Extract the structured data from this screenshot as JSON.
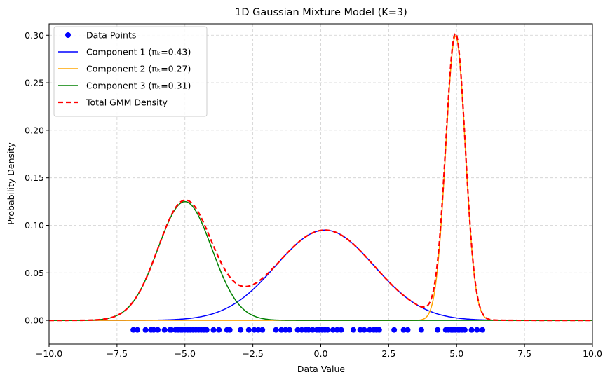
{
  "chart_data": {
    "type": "line",
    "title": "1D Gaussian Mixture Model (K=3)",
    "xlabel": "Data Value",
    "ylabel": "Probability Density",
    "xlim": [
      -10,
      10
    ],
    "ylim": [
      -0.025,
      0.312
    ],
    "grid": true,
    "legend_position": "top-left",
    "x_ticks": [
      -10,
      -7.5,
      -5,
      -2.5,
      0,
      2.5,
      5,
      7.5,
      10
    ],
    "x_tick_labels": [
      "−10.0",
      "−7.5",
      "−5.0",
      "−2.5",
      "0.0",
      "2.5",
      "5.0",
      "7.5",
      "10.0"
    ],
    "y_ticks": [
      0,
      0.05,
      0.1,
      0.15,
      0.2,
      0.25,
      0.3
    ],
    "y_tick_labels": [
      "0.00",
      "0.05",
      "0.10",
      "0.15",
      "0.20",
      "0.25",
      "0.30"
    ],
    "series": [
      {
        "name": "Data Points",
        "kind": "scatter",
        "color": "#0000ff",
        "x": [
          -6.9,
          -6.75,
          -6.45,
          -6.25,
          -6.15,
          -6.0,
          -5.75,
          -5.55,
          -5.5,
          -5.35,
          -5.25,
          -5.15,
          -5.1,
          -5.0,
          -4.9,
          -4.8,
          -4.7,
          -4.6,
          -4.5,
          -4.4,
          -4.3,
          -4.2,
          -3.95,
          -3.75,
          -3.45,
          -3.35,
          -2.95,
          -2.65,
          -2.45,
          -2.3,
          -2.15,
          -1.65,
          -1.45,
          -1.3,
          -1.15,
          -0.85,
          -0.7,
          -0.55,
          -0.45,
          -0.3,
          -0.15,
          -0.05,
          0.05,
          0.15,
          0.25,
          0.45,
          0.6,
          0.75,
          1.2,
          1.45,
          1.6,
          1.8,
          1.95,
          2.05,
          2.15,
          2.7,
          3.05,
          3.2,
          3.7,
          4.3,
          4.6,
          4.7,
          4.8,
          4.85,
          4.9,
          4.95,
          5.05,
          5.1,
          5.2,
          5.3,
          5.55,
          5.75,
          5.95
        ],
        "y": -0.01
      },
      {
        "name": "Component 1 (πₖ=0.43)",
        "kind": "gaussian",
        "color": "#0000ff",
        "pi": 0.43,
        "mu": 0.15,
        "sigma": 1.806,
        "style": "solid"
      },
      {
        "name": "Component 2 (πₖ=0.27)",
        "kind": "gaussian",
        "color": "#ffa500",
        "pi": 0.27,
        "mu": 4.96,
        "sigma": 0.36,
        "style": "solid"
      },
      {
        "name": "Component 3 (πₖ=0.31)",
        "kind": "gaussian",
        "color": "#008000",
        "pi": 0.31,
        "mu": -5.0,
        "sigma": 0.99,
        "style": "solid"
      },
      {
        "name": "Total GMM Density",
        "kind": "sum",
        "color": "#ff0000",
        "style": "dashed"
      }
    ]
  }
}
